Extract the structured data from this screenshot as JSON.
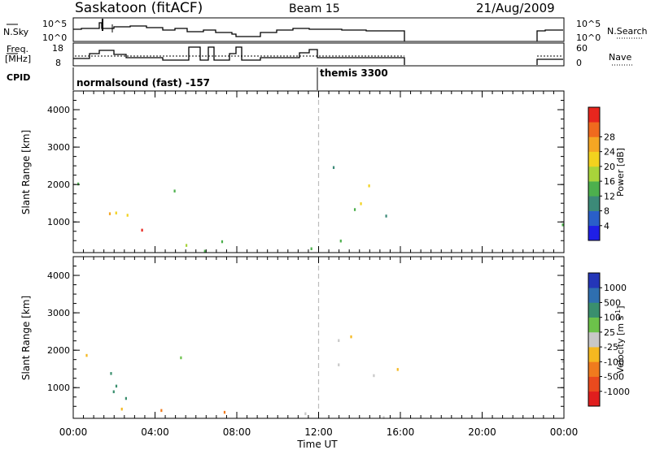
{
  "header": {
    "station": "Saskatoon (fitACF)",
    "beam": "Beam 15",
    "date": "21/Aug/2009"
  },
  "panels": {
    "nsky": {
      "label": "N.Sky",
      "tick_top": "10^5",
      "tick_bottom": "10^0",
      "right_label": "N.Search",
      "right_tick_top": "10^5",
      "right_tick_bottom": "10^0"
    },
    "freq": {
      "label_line1": "Freq.",
      "label_line2": "[MHz]",
      "tick_top": "18",
      "tick_bottom": "8",
      "right_label": "Nave",
      "right_tick_top": "60",
      "right_tick_bottom": "0"
    },
    "cpid": {
      "label": "CPID",
      "segments": [
        {
          "label": "normalsound (fast) -157",
          "start_hour": 0
        },
        {
          "label": "themis 3300",
          "start_hour": 12.0
        }
      ]
    }
  },
  "chart_data": [
    {
      "type": "heatmap",
      "name": "power",
      "ylabel": "Slant Range [km]",
      "yticks": [
        1000,
        2000,
        3000,
        4000
      ],
      "ylim": [
        180,
        4500
      ],
      "xlim": [
        0,
        24
      ],
      "colorbar": {
        "label": "Power [dB]",
        "ticks": [
          "4",
          "8",
          "12",
          "16",
          "20",
          "24",
          "28"
        ],
        "range": [
          0,
          30
        ],
        "colors": [
          "#1f1fe6",
          "#2a5fc9",
          "#3c8a78",
          "#4db04d",
          "#a8d43a",
          "#f2d21e",
          "#f5a623",
          "#f06a1e",
          "#e8261e"
        ]
      }
    },
    {
      "type": "heatmap",
      "name": "velocity",
      "ylabel": "Slant Range [km]",
      "yticks": [
        1000,
        2000,
        3000,
        4000
      ],
      "ylim": [
        180,
        4500
      ],
      "xlim": [
        0,
        24
      ],
      "colorbar": {
        "label": "Velocity [m s",
        "label_sup": "-1",
        "label_end": "]",
        "ticks": [
          "1000",
          "500",
          "100",
          "25",
          "-25",
          "-100",
          "-500",
          "-1000"
        ],
        "colors": [
          "#2436b8",
          "#2f6fb0",
          "#3a8f6e",
          "#6cc24a",
          "#c8c8c8",
          "#f5b820",
          "#f07b1e",
          "#ea4a1e",
          "#e01e1e"
        ]
      }
    }
  ],
  "xaxis": {
    "label": "Time UT",
    "ticks": [
      "00:00",
      "04:00",
      "08:00",
      "12:00",
      "16:00",
      "20:00",
      "00:00"
    ],
    "tick_hours": [
      0,
      4,
      8,
      12,
      16,
      20,
      24
    ],
    "marker_hour": 12.0
  },
  "series_colors": {
    "trace": "#000000",
    "dotted": "#000000",
    "marker": "#bfbfbf"
  }
}
